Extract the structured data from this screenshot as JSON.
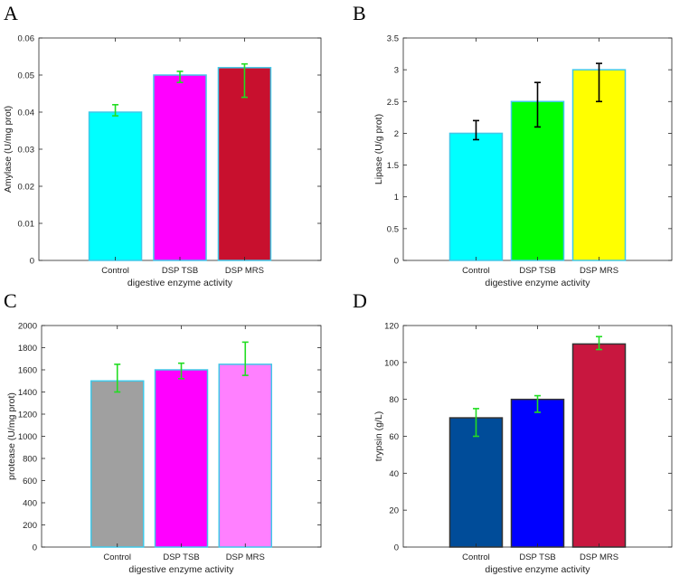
{
  "chart_data": [
    {
      "panel": "A",
      "type": "bar",
      "title": "",
      "categories": [
        "Control",
        "DSP TSB",
        "DSP MRS"
      ],
      "values": [
        0.04,
        0.05,
        0.052
      ],
      "errors": [
        [
          0.039,
          0.042
        ],
        [
          0.048,
          0.051
        ],
        [
          0.044,
          0.053
        ]
      ],
      "colors": [
        "#00ffff",
        "#ff00ff",
        "#c8102e"
      ],
      "edge_color": "#40c8e8",
      "error_color": "#22dd22",
      "xlabel": "digestive enzyme activity",
      "ylabel": "Amylase (U/mg prot)",
      "ylim": [
        0,
        0.06
      ],
      "yticks": [
        0,
        0.01,
        0.02,
        0.03,
        0.04,
        0.05,
        0.06
      ],
      "yticklabels": [
        "0",
        "0.01",
        "0.02",
        "0.03",
        "0.04",
        "0.05",
        "0.06"
      ]
    },
    {
      "panel": "B",
      "type": "bar",
      "title": "",
      "categories": [
        "Control",
        "DSP TSB",
        "DSP MRS"
      ],
      "values": [
        2.0,
        2.5,
        3.0
      ],
      "errors": [
        [
          1.9,
          2.2
        ],
        [
          2.1,
          2.8
        ],
        [
          2.5,
          3.1
        ]
      ],
      "colors": [
        "#00ffff",
        "#00ff00",
        "#ffff00"
      ],
      "edge_color": "#40c8e8",
      "error_color": "#000000",
      "xlabel": "digestive enzyme activity",
      "ylabel": "Lipase (U/g prot)",
      "ylim": [
        0,
        3.5
      ],
      "yticks": [
        0,
        0.5,
        1,
        1.5,
        2,
        2.5,
        3,
        3.5
      ],
      "yticklabels": [
        "0",
        "0.5",
        "1",
        "1.5",
        "2",
        "2.5",
        "3",
        "3.5"
      ]
    },
    {
      "panel": "C",
      "type": "bar",
      "title": "",
      "categories": [
        "Control",
        "DSP TSB",
        "DSP MRS"
      ],
      "values": [
        1500,
        1600,
        1650
      ],
      "errors": [
        [
          1400,
          1650
        ],
        [
          1520,
          1660
        ],
        [
          1550,
          1850
        ]
      ],
      "colors": [
        "#a0a0a0",
        "#ff00ff",
        "#ff80ff"
      ],
      "edge_color": "#40c8e8",
      "error_color": "#22dd22",
      "xlabel": "digestive enzyme activity",
      "ylabel": "protease (U/mg prot)",
      "ylim": [
        0,
        2000
      ],
      "yticks": [
        0,
        200,
        400,
        600,
        800,
        1000,
        1200,
        1400,
        1600,
        1800,
        2000
      ],
      "yticklabels": [
        "0",
        "200",
        "400",
        "600",
        "800",
        "1000",
        "1200",
        "1400",
        "1600",
        "1800",
        "2000"
      ]
    },
    {
      "panel": "D",
      "type": "bar",
      "title": "",
      "categories": [
        "Control",
        "DSP TSB",
        "DSP MRS"
      ],
      "values": [
        70,
        80,
        110
      ],
      "errors": [
        [
          60,
          75
        ],
        [
          73,
          82
        ],
        [
          107,
          114
        ]
      ],
      "colors": [
        "#004c99",
        "#0000ff",
        "#c8173f"
      ],
      "edge_color": "#333333",
      "error_color": "#22dd22",
      "xlabel": "digestive enzyme activity",
      "ylabel": "trypsin (g/L)",
      "ylim": [
        0,
        120
      ],
      "yticks": [
        0,
        20,
        40,
        60,
        80,
        100,
        120
      ],
      "yticklabels": [
        "0",
        "20",
        "40",
        "60",
        "80",
        "100",
        "120"
      ]
    }
  ]
}
